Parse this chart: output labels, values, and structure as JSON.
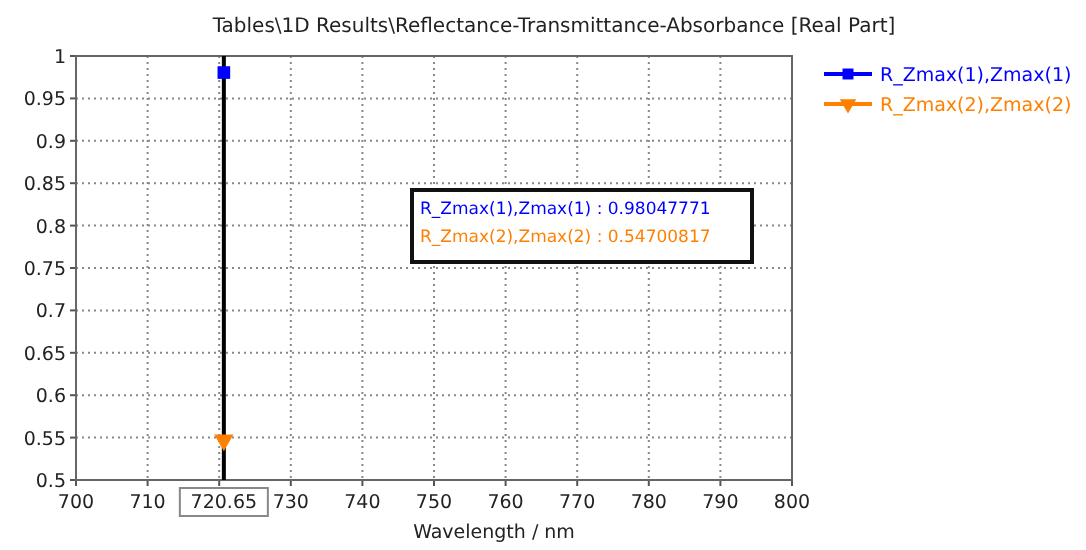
{
  "chart_data": {
    "type": "line",
    "title": "Tables\\1D Results\\Reflectance-Transmittance-Absorbance [Real Part]",
    "xlabel": "Wavelength / nm",
    "series": [
      {
        "name": "R_Zmax(1),Zmax(1)",
        "color": "#0000ff",
        "marker": "square",
        "x": [
          720.65
        ],
        "values": [
          0.98047771
        ]
      },
      {
        "name": "R_Zmax(2),Zmax(2)",
        "color": "#ff8000",
        "marker": "triangle",
        "x": [
          720.65
        ],
        "values": [
          0.54700817
        ]
      }
    ],
    "xlim": [
      700,
      800
    ],
    "xticks": [
      700,
      710,
      {
        "value": 720,
        "label": null
      },
      730,
      740,
      750,
      760,
      770,
      780,
      790,
      800
    ],
    "ylim": [
      0.5,
      1
    ],
    "yticks": [
      0.5,
      0.55,
      0.6,
      0.65,
      0.7,
      0.75,
      0.8,
      0.85,
      0.9,
      0.95,
      1
    ],
    "grid": true,
    "legend": "right",
    "ref_lines": [
      {
        "axis": "x",
        "value": 720.65,
        "label": "720.65",
        "color": "#000000"
      }
    ],
    "annotations": [
      "R_Zmax(1),Zmax(1) : 0.98047771",
      "R_Zmax(2),Zmax(2) : 0.54700817"
    ]
  }
}
